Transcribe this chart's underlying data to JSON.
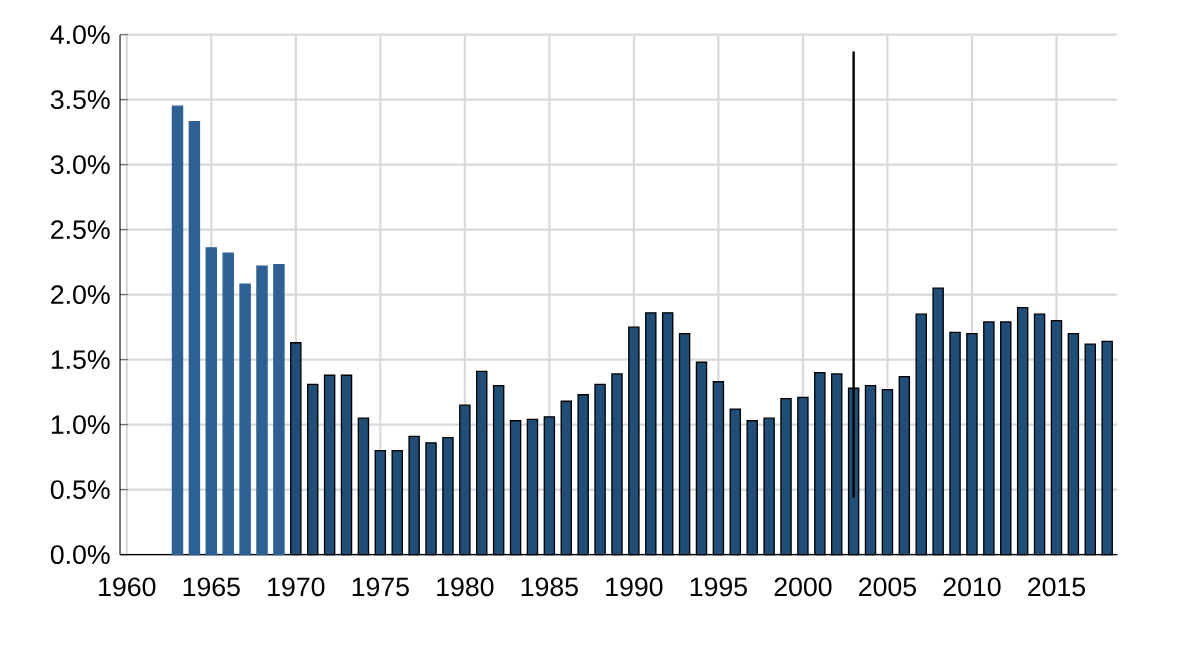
{
  "chart_data": {
    "type": "bar",
    "x": [
      1963,
      1964,
      1965,
      1966,
      1967,
      1968,
      1969,
      1970,
      1971,
      1972,
      1973,
      1974,
      1975,
      1976,
      1977,
      1978,
      1979,
      1980,
      1981,
      1982,
      1983,
      1984,
      1985,
      1986,
      1987,
      1988,
      1989,
      1990,
      1991,
      1992,
      1993,
      1994,
      1995,
      1996,
      1997,
      1998,
      1999,
      2000,
      2001,
      2002,
      2003,
      2004,
      2005,
      2006,
      2007,
      2008,
      2009,
      2010,
      2011,
      2012,
      2013,
      2014,
      2015,
      2016,
      2017,
      2018
    ],
    "values": [
      3.45,
      3.33,
      2.36,
      2.32,
      2.08,
      2.22,
      2.23,
      1.63,
      1.31,
      1.38,
      1.38,
      1.05,
      0.8,
      0.8,
      0.91,
      0.86,
      0.9,
      1.15,
      1.41,
      1.3,
      1.03,
      1.04,
      1.06,
      1.18,
      1.23,
      1.31,
      1.39,
      1.75,
      1.86,
      1.86,
      1.7,
      1.48,
      1.33,
      1.12,
      1.03,
      1.05,
      1.2,
      1.21,
      1.4,
      1.39,
      1.28,
      1.3,
      1.27,
      1.37,
      1.85,
      2.05,
      1.71,
      1.7,
      1.79,
      1.79,
      1.9,
      1.85,
      1.8,
      1.7,
      1.62,
      1.64
    ],
    "colors": [
      "#2e6193",
      "#2e6193",
      "#2e6193",
      "#2e6193",
      "#2e6193",
      "#2e6193",
      "#2e6193",
      "#1f4e79",
      "#1f4e79",
      "#1f4e79",
      "#1f4e79",
      "#1f4e79",
      "#1f4e79",
      "#1f4e79",
      "#1f4e79",
      "#1f4e79",
      "#1f4e79",
      "#1f4e79",
      "#1f4e79",
      "#1f4e79",
      "#1f4e79",
      "#1f4e79",
      "#1f4e79",
      "#1f4e79",
      "#1f4e79",
      "#1f4e79",
      "#1f4e79",
      "#1f4e79",
      "#1f4e79",
      "#1f4e79",
      "#1f4e79",
      "#1f4e79",
      "#1f4e79",
      "#1f4e79",
      "#1f4e79",
      "#1f4e79",
      "#1f4e79",
      "#1f4e79",
      "#1f4e79",
      "#1f4e79",
      "#1f4e79",
      "#1f4e79",
      "#1f4e79",
      "#1f4e79",
      "#1f4e79",
      "#1f4e79",
      "#1f4e79",
      "#1f4e79",
      "#1f4e79",
      "#1f4e79",
      "#1f4e79",
      "#1f4e79",
      "#1f4e79",
      "#1f4e79",
      "#1f4e79",
      "#1f4e79"
    ],
    "errors": [
      null,
      null,
      null,
      null,
      null,
      null,
      null,
      null,
      null,
      null,
      null,
      null,
      null,
      null,
      null,
      null,
      null,
      null,
      null,
      null,
      null,
      null,
      null,
      null,
      null,
      null,
      null,
      null,
      null,
      null,
      null,
      null,
      null,
      null,
      null,
      null,
      null,
      null,
      null,
      null,
      [
        0.44,
        3.87
      ],
      null,
      null,
      null,
      null,
      null,
      null,
      null,
      null,
      null,
      null,
      null,
      null,
      null,
      null,
      null
    ],
    "xlim": [
      1959.6,
      2018.6
    ],
    "xticks": [
      1960,
      1965,
      1970,
      1975,
      1980,
      1985,
      1990,
      1995,
      2000,
      2005,
      2010,
      2015
    ],
    "ylim": [
      0,
      4
    ],
    "yticks": [
      {
        "value": 0,
        "label": "0.0%"
      },
      {
        "value": 0.5,
        "label": "0.5%"
      },
      {
        "value": 1,
        "label": "1.0%"
      },
      {
        "value": 1.5,
        "label": "1.5%"
      },
      {
        "value": 2,
        "label": "2.0%"
      },
      {
        "value": 2.5,
        "label": "2.5%"
      },
      {
        "value": 3,
        "label": "3.0%"
      },
      {
        "value": 3.5,
        "label": "3.5%"
      },
      {
        "value": 4,
        "label": "4.0%"
      }
    ],
    "grid": true
  }
}
